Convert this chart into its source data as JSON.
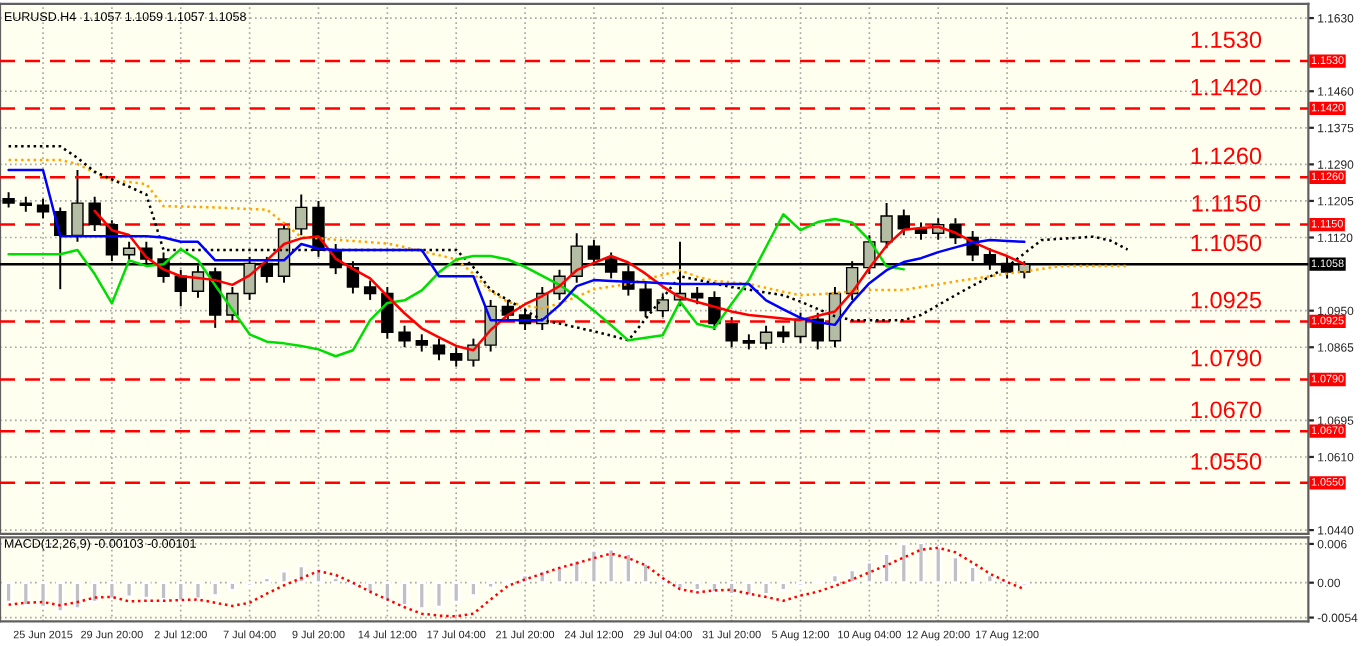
{
  "chart_data": [
    {
      "type": "candlestick",
      "title": "EURUSD.H4  1.1057 1.1059 1.1057 1.1058",
      "categories": [
        null,
        null,
        null,
        null,
        null,
        null,
        null,
        null,
        null,
        null,
        null,
        null,
        null,
        null,
        null,
        null,
        null,
        null,
        null,
        null,
        null,
        null,
        null,
        null,
        null,
        null,
        null,
        null,
        null,
        null,
        null,
        null,
        null,
        null,
        null,
        null,
        null,
        null,
        null,
        null,
        null,
        null,
        null,
        null,
        null,
        null,
        null,
        null,
        null,
        null,
        null,
        null,
        null,
        null,
        null,
        null,
        null,
        null,
        null,
        null,
        null,
        null,
        null,
        null,
        null,
        null,
        null,
        null,
        null,
        null,
        null,
        null,
        null,
        null,
        null,
        null
      ],
      "ohlc": [
        [
          1.121,
          1.1225,
          1.119,
          1.12
        ],
        [
          1.12,
          1.1215,
          1.118,
          1.1195
        ],
        [
          1.1195,
          1.121,
          1.1165,
          1.118
        ],
        [
          1.118,
          1.119,
          1.1,
          1.1125
        ],
        [
          1.1125,
          1.1277,
          1.111,
          1.12
        ],
        [
          1.12,
          1.1215,
          1.1135,
          1.115
        ],
        [
          1.115,
          1.116,
          1.1065,
          1.108
        ],
        [
          1.108,
          1.111,
          1.1065,
          1.1095
        ],
        [
          1.1095,
          1.111,
          1.1055,
          1.107
        ],
        [
          1.107,
          1.1085,
          1.1015,
          1.103
        ],
        [
          1.103,
          1.1045,
          1.096,
          1.0995
        ],
        [
          1.0995,
          1.1055,
          1.098,
          1.104
        ],
        [
          1.104,
          1.105,
          1.091,
          1.094
        ],
        [
          1.094,
          1.1005,
          1.0925,
          1.099
        ],
        [
          1.099,
          1.1075,
          1.0975,
          1.106
        ],
        [
          1.106,
          1.1075,
          1.1015,
          1.103
        ],
        [
          1.103,
          1.1155,
          1.1015,
          1.114
        ],
        [
          1.114,
          1.122,
          1.1125,
          1.119
        ],
        [
          1.119,
          1.1205,
          1.1075,
          1.109
        ],
        [
          1.109,
          1.1105,
          1.1035,
          1.105
        ],
        [
          1.105,
          1.1065,
          1.099,
          1.1005
        ],
        [
          1.1005,
          1.102,
          1.0975,
          1.099
        ],
        [
          1.099,
          1.1005,
          1.0885,
          1.09
        ],
        [
          1.09,
          1.0915,
          1.0865,
          1.088
        ],
        [
          1.088,
          1.0895,
          1.0855,
          1.087
        ],
        [
          1.087,
          1.0885,
          1.0835,
          1.085
        ],
        [
          1.085,
          1.0865,
          1.082,
          1.0835
        ],
        [
          1.0835,
          1.0885,
          1.082,
          1.087
        ],
        [
          1.087,
          1.0975,
          1.0855,
          1.096
        ],
        [
          1.096,
          1.0975,
          1.0925,
          1.094
        ],
        [
          1.094,
          1.0955,
          1.0905,
          1.092
        ],
        [
          1.092,
          1.1005,
          1.0905,
          1.099
        ],
        [
          1.099,
          1.1045,
          1.0975,
          1.103
        ],
        [
          1.103,
          1.113,
          1.1015,
          1.11
        ],
        [
          1.11,
          1.1115,
          1.1055,
          1.107
        ],
        [
          1.107,
          1.1085,
          1.1025,
          1.104
        ],
        [
          1.104,
          1.1055,
          1.0985,
          1.1
        ],
        [
          1.1,
          1.1015,
          1.0935,
          1.095
        ],
        [
          1.095,
          1.099,
          1.0935,
          1.0975
        ],
        [
          1.0975,
          1.111,
          1.096,
          1.099
        ],
        [
          1.099,
          1.1005,
          1.0965,
          1.098
        ],
        [
          1.098,
          1.0995,
          1.0905,
          1.092
        ],
        [
          1.092,
          1.0935,
          1.0865,
          1.088
        ],
        [
          1.088,
          1.0895,
          1.086,
          1.0875
        ],
        [
          1.0875,
          1.0915,
          1.086,
          1.09
        ],
        [
          1.09,
          1.0915,
          1.0875,
          1.089
        ],
        [
          1.089,
          1.0945,
          1.0875,
          1.093
        ],
        [
          1.093,
          1.0945,
          1.086,
          1.088
        ],
        [
          1.088,
          1.1005,
          1.0865,
          1.099
        ],
        [
          1.099,
          1.1065,
          1.0975,
          1.105
        ],
        [
          1.105,
          1.1125,
          1.1035,
          1.111
        ],
        [
          1.111,
          1.12,
          1.1095,
          1.117
        ],
        [
          1.117,
          1.1185,
          1.1125,
          1.114
        ],
        [
          1.114,
          1.1155,
          1.1115,
          1.113
        ],
        [
          1.113,
          1.1165,
          1.1115,
          1.115
        ],
        [
          1.115,
          1.1165,
          1.1105,
          1.112
        ],
        [
          1.112,
          1.1135,
          1.1065,
          1.108
        ],
        [
          1.108,
          1.1095,
          1.1045,
          1.106
        ],
        [
          1.106,
          1.1075,
          1.1025,
          1.104
        ],
        [
          1.104,
          1.1065,
          1.1025,
          1.1058
        ],
        null,
        null,
        null,
        null,
        null,
        null,
        null,
        null,
        null,
        null,
        null,
        null,
        null,
        null,
        null,
        null
      ],
      "series": [
        {
          "type": "line",
          "color": "#ffa500",
          "line_style": "dotted",
          "values": [
            1.13,
            1.13,
            1.13,
            1.13,
            1.1291,
            1.1271,
            1.1252,
            1.1249,
            1.1244,
            1.1193,
            1.1192,
            1.1191,
            1.119,
            1.1188,
            1.1186,
            1.1185,
            1.1153,
            1.1121,
            1.1118,
            1.1115,
            1.1112,
            1.1109,
            1.1106,
            1.1098,
            1.1088,
            1.1079,
            1.1069,
            1.1036,
            1.0995,
            1.097,
            1.0962,
            1.0955,
            1.0967,
            1.0982,
            1.1,
            1.1006,
            1.1012,
            1.1023,
            1.1033,
            1.1044,
            1.1029,
            1.1019,
            1.1016,
            1.1012,
            1.1003,
            1.0994,
            1.0986,
            1.0988,
            1.0991,
            1.0995,
            1.0998,
            1.0998,
            1.0998,
            1.1005,
            1.1011,
            1.1018,
            1.1024,
            1.103,
            1.1036,
            1.1041,
            1.1047,
            1.1053,
            1.1054,
            1.1054,
            1.1054,
            1.1054,
            null,
            null,
            null,
            null,
            null,
            null,
            null,
            null,
            null,
            null
          ]
        },
        {
          "type": "line",
          "color": "#000000",
          "line_style": "dotted",
          "values": [
            1.1332,
            1.1332,
            1.1332,
            1.1332,
            1.1305,
            1.1273,
            1.1255,
            1.1238,
            1.122,
            1.1091,
            1.1091,
            1.1091,
            1.1091,
            1.1091,
            1.1091,
            1.1091,
            1.1091,
            1.1091,
            1.1091,
            1.1091,
            1.1091,
            1.1091,
            1.1091,
            1.1091,
            1.1091,
            1.1091,
            1.1091,
            1.1051,
            1.0998,
            1.0975,
            1.0951,
            1.0928,
            1.092,
            1.0911,
            1.0902,
            1.0892,
            1.0881,
            1.0931,
            1.098,
            1.103,
            1.1022,
            1.1013,
            1.1005,
            1.0999,
            1.0992,
            1.0986,
            1.0971,
            1.0954,
            1.0937,
            1.0928,
            1.0928,
            1.0928,
            1.0928,
            1.094,
            1.0963,
            1.0986,
            1.1008,
            1.1029,
            1.1052,
            1.1083,
            1.1114,
            1.1117,
            1.1119,
            1.1122,
            1.1113,
            1.1092,
            null,
            null,
            null,
            null,
            null,
            null,
            null,
            null,
            null,
            null
          ]
        },
        {
          "type": "line",
          "color": "#00dd00",
          "line_style": "solid",
          "values": [
            1.1081,
            1.1081,
            1.1081,
            1.1081,
            1.1091,
            1.1035,
            1.0967,
            1.1067,
            1.1054,
            1.1058,
            1.1093,
            1.1067,
            1.1009,
            1.0952,
            1.0895,
            1.0878,
            1.0874,
            1.0868,
            1.086,
            1.0844,
            1.0858,
            1.0928,
            1.0968,
            1.0974,
            1.0997,
            1.1039,
            1.1069,
            1.1077,
            1.1077,
            1.1069,
            1.1052,
            1.1031,
            1.101,
            1.0982,
            1.095,
            1.0916,
            1.0881,
            1.0887,
            1.0893,
            1.0971,
            1.0919,
            1.091,
            1.0966,
            1.1021,
            1.1098,
            1.1174,
            1.1137,
            1.1156,
            1.1163,
            1.1155,
            1.1114,
            1.1053,
            1.1046,
            null,
            null,
            null,
            null,
            null,
            null,
            null,
            null,
            null,
            null,
            null,
            null,
            null,
            null,
            null,
            null,
            null,
            null,
            null,
            null,
            null,
            null,
            null
          ]
        },
        {
          "type": "line",
          "color": "#ff0000",
          "line_style": "solid",
          "values": [
            null,
            null,
            null,
            null,
            null,
            1.1182,
            1.1137,
            1.1126,
            1.1074,
            1.1046,
            1.103,
            1.1026,
            1.1021,
            1.101,
            1.1032,
            1.1067,
            1.1105,
            1.1118,
            1.1123,
            1.1071,
            1.1047,
            1.1025,
            1.0984,
            1.0944,
            1.0909,
            1.0888,
            1.0868,
            1.0858,
            1.0905,
            1.094,
            1.0965,
            1.0984,
            1.1007,
            1.1044,
            1.1061,
            1.1077,
            1.1062,
            1.1036,
            1.1006,
            1.0981,
            1.097,
            1.0959,
            1.0948,
            1.094,
            1.0936,
            1.0932,
            1.0928,
            1.0938,
            1.0948,
            1.0993,
            1.1049,
            1.1101,
            1.1138,
            1.1142,
            1.1145,
            1.1131,
            1.111,
            1.1092,
            1.1077,
            1.1058,
            null,
            null,
            null,
            null,
            null,
            null,
            null,
            null,
            null,
            null,
            null,
            null,
            null,
            null,
            null,
            null
          ]
        },
        {
          "type": "line",
          "color": "#0000ff",
          "line_style": "solid",
          "values": [
            1.1277,
            1.1277,
            1.1277,
            1.1123,
            1.1123,
            1.1123,
            1.1123,
            1.1123,
            1.1123,
            1.112,
            1.111,
            1.111,
            1.1067,
            1.1067,
            1.1067,
            1.1067,
            1.1067,
            1.1105,
            1.1094,
            1.1091,
            1.1091,
            1.1091,
            1.1091,
            1.1091,
            1.1091,
            1.103,
            1.103,
            1.103,
            1.0928,
            1.0928,
            1.0928,
            1.0928,
            1.0963,
            1.1007,
            1.1021,
            1.1019,
            1.1017,
            1.1016,
            1.1014,
            1.1012,
            1.1012,
            1.1012,
            1.1012,
            1.1012,
            1.0974,
            1.0953,
            1.0933,
            1.0923,
            1.0917,
            1.097,
            1.1014,
            1.1044,
            1.1063,
            1.1072,
            1.1086,
            1.1097,
            1.1108,
            1.1114,
            1.1112,
            1.111,
            null,
            null,
            null,
            null,
            null,
            null,
            null,
            null,
            null,
            null,
            null,
            null,
            null,
            null,
            null,
            null
          ]
        }
      ],
      "ylim": [
        1.0431,
        1.1663
      ],
      "yticks": [
        {
          "value": 1.163,
          "label": "1.1630"
        },
        {
          "value": 1.146,
          "label": "1.1460"
        },
        {
          "value": 1.1375,
          "label": "1.1375"
        },
        {
          "value": 1.129,
          "label": "1.1290"
        },
        {
          "value": 1.1205,
          "label": "1.1205"
        },
        {
          "value": 1.112,
          "label": "1.1120"
        },
        {
          "value": 1.095,
          "label": "1.0950"
        },
        {
          "value": 1.0865,
          "label": "1.0865"
        },
        {
          "value": 1.0695,
          "label": "1.0695"
        },
        {
          "value": 1.061,
          "label": "1.0610"
        },
        {
          "value": 1.044,
          "label": "1.0440"
        }
      ],
      "ref_lines": [
        {
          "axis": "y",
          "value": 1.153,
          "label": "1.1530",
          "color": "#ff0000",
          "line_style": "dashed"
        },
        {
          "axis": "y",
          "value": 1.142,
          "label": "1.1420",
          "color": "#ff0000",
          "line_style": "dashed"
        },
        {
          "axis": "y",
          "value": 1.126,
          "label": "1.1260",
          "color": "#ff0000",
          "line_style": "dashed"
        },
        {
          "axis": "y",
          "value": 1.115,
          "label": "1.1150",
          "color": "#ff0000",
          "line_style": "dashed"
        },
        {
          "axis": "y",
          "value": 1.1058,
          "label": "1.1058",
          "color": "#000000",
          "line_style": "solid"
        },
        {
          "axis": "y",
          "value": 1.0925,
          "label": "1.0925",
          "color": "#ff0000",
          "line_style": "dashed"
        },
        {
          "axis": "y",
          "value": 1.079,
          "label": "1.0790",
          "color": "#ff0000",
          "line_style": "dashed"
        },
        {
          "axis": "y",
          "value": 1.067,
          "label": "1.0670",
          "color": "#ff0000",
          "line_style": "dashed"
        },
        {
          "axis": "y",
          "value": 1.055,
          "label": "1.0550",
          "color": "#ff0000",
          "line_style": "dashed"
        }
      ],
      "annotations": [
        {
          "text": "1.1530",
          "y": 1.153
        },
        {
          "text": "1.1420",
          "y": 1.142
        },
        {
          "text": "1.1260",
          "y": 1.126
        },
        {
          "text": "1.1150",
          "y": 1.115
        },
        {
          "text": "1.1050",
          "y": 1.1058
        },
        {
          "text": "1.0925",
          "y": 1.0925
        },
        {
          "text": "1.0790",
          "y": 1.079
        },
        {
          "text": "1.0670",
          "y": 1.067
        },
        {
          "text": "1.0550",
          "y": 1.055
        }
      ],
      "grid": true,
      "tick_labels": "y"
    },
    {
      "type": "bar",
      "title": "MACD(12,26,9) -0.00103 -0.00101",
      "color": "#c0c0c0",
      "categories": [
        null,
        null,
        "25 Jun 2015",
        null,
        null,
        null,
        "29 Jun 20:00",
        null,
        null,
        null,
        "2 Jul 12:00",
        null,
        null,
        null,
        "7 Jul 04:00",
        null,
        null,
        null,
        "9 Jul 20:00",
        null,
        null,
        null,
        "14 Jul 12:00",
        null,
        null,
        null,
        "17 Jul 04:00",
        null,
        null,
        null,
        "21 Jul 20:00",
        null,
        null,
        null,
        "24 Jul 12:00",
        null,
        null,
        null,
        "29 Jul 04:00",
        null,
        null,
        null,
        "31 Jul 20:00",
        null,
        null,
        null,
        "5 Aug 12:00",
        null,
        null,
        null,
        "10 Aug 04:00",
        null,
        null,
        null,
        "12 Aug 20:00",
        null,
        null,
        null,
        "17 Aug 12:00",
        null,
        null,
        null,
        null,
        null,
        null,
        null,
        null,
        null,
        null,
        null,
        null,
        null,
        null,
        null,
        null,
        null
      ],
      "values": [
        -0.003,
        -0.0035,
        -0.0038,
        -0.0045,
        -0.004,
        -0.003,
        -0.0025,
        -0.0022,
        -0.0024,
        -0.0026,
        -0.0028,
        -0.0025,
        -0.002,
        -0.0012,
        -0.0005,
        0.0008,
        0.0018,
        0.0026,
        0.002,
        0.0008,
        -0.0005,
        -0.0015,
        -0.0028,
        -0.0035,
        -0.004,
        -0.0038,
        -0.003,
        -0.002,
        -0.0008,
        0.0002,
        0.0012,
        0.0018,
        0.0025,
        0.0035,
        0.005,
        0.0052,
        0.0045,
        0.003,
        0.0005,
        -0.001,
        -0.0012,
        -0.0015,
        -0.0018,
        -0.002,
        -0.0018,
        -0.0012,
        -0.0005,
        0.0003,
        0.0012,
        0.002,
        0.0032,
        0.0045,
        0.006,
        0.0062,
        0.0055,
        0.004,
        0.0025,
        0.0012,
        0.0002,
        -0.0005,
        null,
        null,
        null,
        null,
        null,
        null,
        null,
        null,
        null,
        null,
        null,
        null,
        null,
        null,
        null,
        null
      ],
      "series": [
        {
          "type": "line",
          "color": "#ff0000",
          "line_style": "dotted",
          "values": [
            -0.0034,
            -0.0031,
            -0.003,
            -0.0035,
            -0.003,
            -0.0023,
            -0.0022,
            -0.0029,
            -0.0028,
            -0.0028,
            -0.0027,
            -0.0026,
            -0.0031,
            -0.0036,
            -0.0031,
            -0.0017,
            -0.0004,
            0.0007,
            0.0018,
            0.0012,
            0.0,
            -0.0014,
            -0.0026,
            -0.0038,
            -0.0048,
            -0.0051,
            -0.0052,
            -0.0048,
            -0.0026,
            -0.0005,
            0.0005,
            0.0014,
            0.0023,
            0.003,
            0.0038,
            0.0045,
            0.0038,
            0.0027,
            0.0007,
            -0.001,
            -0.0015,
            -0.0012,
            -0.0011,
            -0.0017,
            -0.0022,
            -0.0028,
            -0.002,
            -0.0014,
            -0.0005,
            0.0005,
            0.0016,
            0.0027,
            0.0039,
            0.0051,
            0.0054,
            0.0047,
            0.0031,
            0.0014,
            0.0001,
            -0.001,
            null,
            null,
            null,
            null,
            null,
            null,
            null,
            null,
            null,
            null,
            null,
            null,
            null,
            null,
            null,
            null
          ]
        }
      ],
      "ylim": [
        -0.006,
        0.007
      ],
      "yticks": [
        {
          "value": 0.006,
          "label": "0.006"
        },
        {
          "value": 0,
          "label": "0.00"
        },
        {
          "value": -0.0054,
          "label": "-0.0054"
        }
      ],
      "grid": true
    }
  ]
}
